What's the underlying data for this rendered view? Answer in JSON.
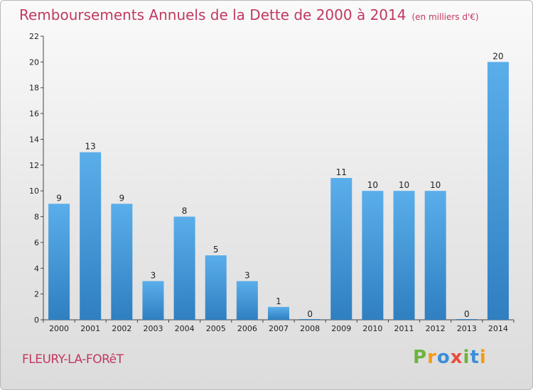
{
  "chart_data": {
    "type": "bar",
    "title": "Remboursements Annuels de la Dette de 2000 à 2014",
    "unit": "(en milliers d'€)",
    "categories": [
      "2000",
      "2001",
      "2002",
      "2003",
      "2004",
      "2005",
      "2006",
      "2007",
      "2008",
      "2009",
      "2010",
      "2011",
      "2012",
      "2013",
      "2014"
    ],
    "values": [
      9,
      13,
      9,
      3,
      8,
      5,
      3,
      1,
      0,
      11,
      10,
      10,
      10,
      0,
      20
    ],
    "ylim": [
      0,
      22
    ],
    "yticks": [
      0,
      2,
      4,
      6,
      8,
      10,
      12,
      14,
      16,
      18,
      20,
      22
    ],
    "grid": false,
    "bar_color": "#4a9fe0"
  },
  "footer": {
    "commune": "FLEURY-LA-FORêT"
  },
  "logo": {
    "letters": [
      {
        "ch": "P",
        "color": "#6db33f"
      },
      {
        "ch": "r",
        "color": "#f39c12"
      },
      {
        "ch": "o",
        "color": "#3a8fd8"
      },
      {
        "ch": "x",
        "color": "#e84c3d"
      },
      {
        "ch": "i",
        "color": "#6db33f"
      },
      {
        "ch": "t",
        "color": "#3a8fd8"
      },
      {
        "ch": "i",
        "color": "#f39c12"
      }
    ]
  }
}
